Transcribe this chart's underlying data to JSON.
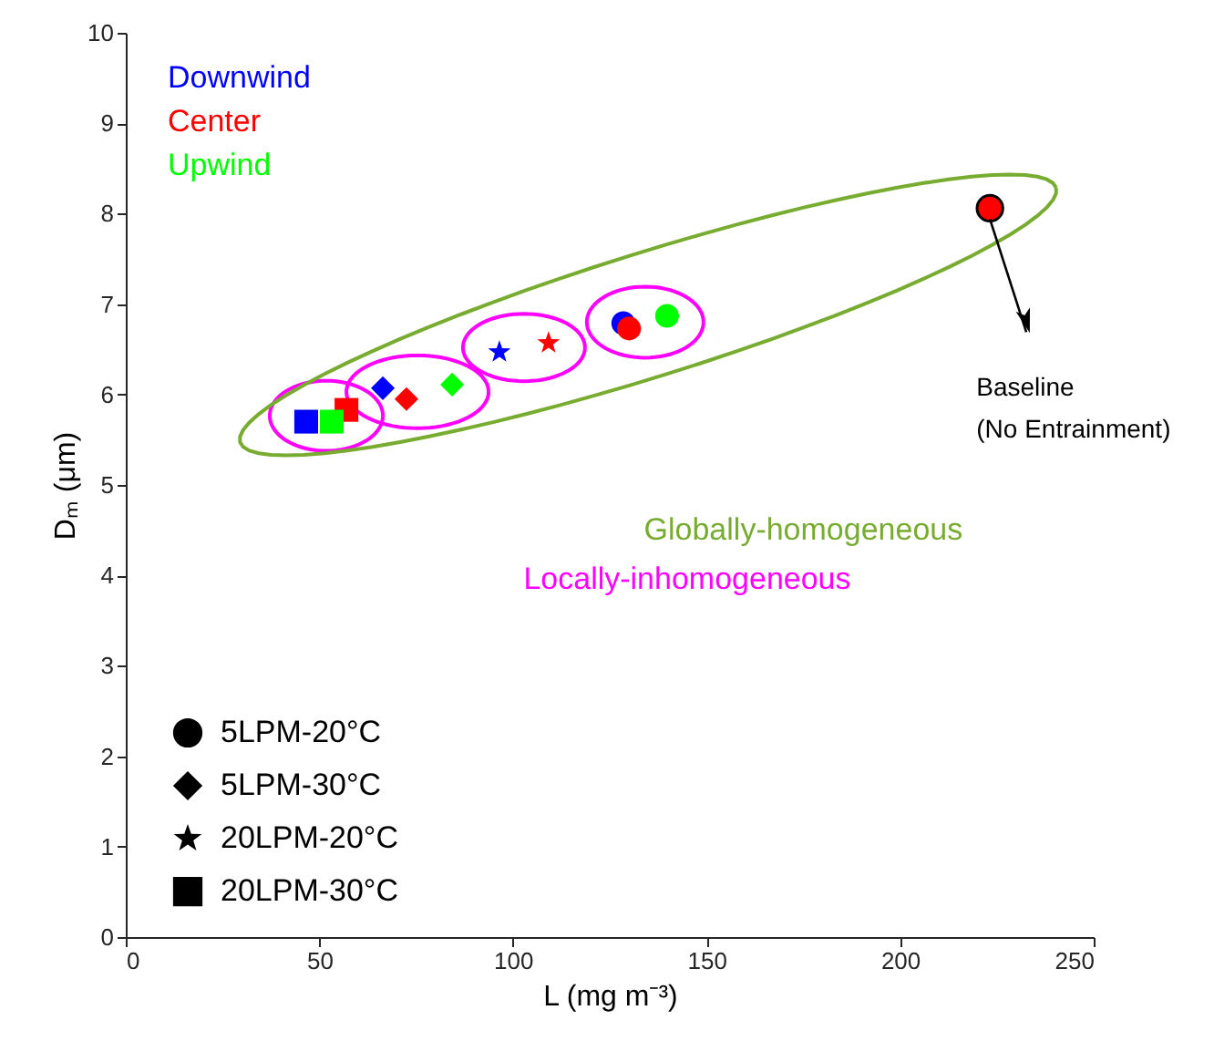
{
  "chart_data": {
    "type": "scatter",
    "xlabel": "L (mg m⁻³)",
    "ylabel": "Dₘ (μm)",
    "xlim": [
      0,
      250
    ],
    "xticks": [
      0,
      50,
      100,
      150,
      200,
      250
    ],
    "ylim": [
      0,
      10
    ],
    "yticks": [
      0,
      1,
      2,
      3,
      4,
      5,
      6,
      7,
      8,
      9,
      10
    ],
    "legend": "top left",
    "grid": false,
    "series": [
      {
        "name": "Downwind",
        "color": "#0000ff",
        "marker": [
          "circle",
          "diamond",
          "star",
          "square"
        ],
        "x": [
          128.5,
          66.4,
          96.5,
          46.6
        ],
        "values": [
          6.79,
          6.07,
          6.47,
          5.7
        ]
      },
      {
        "name": "Center",
        "color": "#ff0000",
        "marker": [
          "circle",
          "diamond",
          "star",
          "square"
        ],
        "x": [
          130.0,
          72.5,
          109.2,
          57.0
        ],
        "values": [
          6.73,
          5.95,
          6.57,
          5.83
        ]
      },
      {
        "name": "Upwind",
        "color": "#00ff00",
        "marker": [
          "circle",
          "diamond",
          "square"
        ],
        "x": [
          139.8,
          84.3,
          53.2
        ],
        "values": [
          6.87,
          6.11,
          5.7
        ]
      },
      {
        "color": "#ff0000",
        "marker": [
          "circle"
        ],
        "x": [
          223.2
        ],
        "values": [
          8.06
        ]
      }
    ],
    "annotations": [
      "Globally-homogeneous",
      "Locally-inhomogeneous",
      "5LPM-20°C",
      "5LPM-30°C",
      "20LPM-20°C",
      "20LPM-30°C",
      "Baseline\n(No Entrainment)"
    ]
  }
}
